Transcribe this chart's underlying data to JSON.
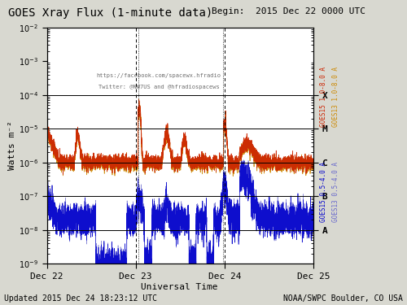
{
  "title": "GOES Xray Flux (1-minute data)",
  "begin_label": "Begin:  2015 Dec 22 0000 UTC",
  "ylabel": "Watts m⁻²",
  "xlabel": "Universal Time",
  "footer_left": "Updated 2015 Dec 24 18:23:12 UTC",
  "footer_right": "NOAA/SWPC Boulder, CO USA",
  "watermark_line1": "https://facebook.com/spacewx.hfradio",
  "watermark_line2": "Twitter: @NW7US and @hfradiospacews",
  "bg_color": "#d8d8d0",
  "plot_bg_color": "#ffffff",
  "goes15_xray_color": "#cc2200",
  "goes13_xray_color": "#cc8800",
  "goes15_particle_color": "#0000cc",
  "goes13_particle_color": "#6666cc",
  "flare_class_labels": [
    "X",
    "M",
    "C",
    "B",
    "A"
  ],
  "flare_class_yvals": [
    0.0001,
    1e-05,
    1e-06,
    1e-07,
    1e-08
  ],
  "hline_yvals": [
    0.0001,
    1e-05,
    1e-06,
    1e-07,
    1e-08
  ],
  "x_tick_labels": [
    "Dec 22",
    "Dec 23",
    "Dec 24",
    "Dec 25"
  ],
  "x_tick_positions": [
    0,
    1,
    2,
    3
  ],
  "right_label_goes15_xray": "GOES15 1.0-8.0 A",
  "right_label_goes13_xray": "GOES13 1.0-8.0 A",
  "right_label_goes15_part": "GOES15 0.5-4.0 A",
  "right_label_goes13_part": "GOES13 0.5-4.0 A"
}
